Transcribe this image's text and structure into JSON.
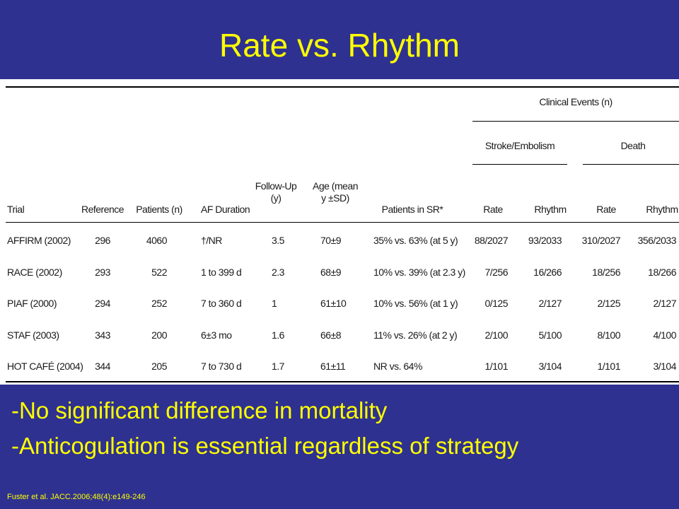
{
  "title": "Rate vs. Rhythm",
  "table": {
    "group_header": "Clinical Events (n)",
    "subgroup_stroke": "Stroke/Embolism",
    "subgroup_death": "Death",
    "columns": {
      "trial": "Trial",
      "reference": "Reference",
      "patients": "Patients (n)",
      "af_duration": "AF Duration",
      "followup_1": "Follow-Up",
      "followup_2": "(y)",
      "age_1": "Age (mean",
      "age_2": "y ±SD)",
      "patients_sr": "Patients in SR*",
      "stroke_rate": "Rate",
      "stroke_rhythm": "Rhythm",
      "death_rate": "Rate",
      "death_rhythm": "Rhythm"
    },
    "rows": [
      {
        "trial": "AFFIRM (2002)",
        "reference": "296",
        "patients": "4060",
        "af_duration": "†/NR",
        "followup": "3.5",
        "age": "70±9",
        "patients_sr": "35% vs. 63% (at 5 y)",
        "stroke_rate": "88/2027",
        "stroke_rhythm": "93/2033",
        "death_rate": "310/2027",
        "death_rhythm": "356/2033"
      },
      {
        "trial": "RACE (2002)",
        "reference": "293",
        "patients": "522",
        "af_duration": "1 to 399 d",
        "followup": "2.3",
        "age": "68±9",
        "patients_sr": "10% vs. 39% (at 2.3 y)",
        "stroke_rate": "7/256",
        "stroke_rhythm": "16/266",
        "death_rate": "18/256",
        "death_rhythm": "18/266"
      },
      {
        "trial": "PIAF (2000)",
        "reference": "294",
        "patients": "252",
        "af_duration": "7 to 360 d",
        "followup": "1",
        "age": "61±10",
        "patients_sr": "10% vs. 56% (at 1 y)",
        "stroke_rate": "0/125",
        "stroke_rhythm": "2/127",
        "death_rate": "2/125",
        "death_rhythm": "2/127"
      },
      {
        "trial": "STAF (2003)",
        "reference": "343",
        "patients": "200",
        "af_duration": "6±3 mo",
        "followup": "1.6",
        "age": "66±8",
        "patients_sr": "11% vs. 26% (at 2 y)",
        "stroke_rate": "2/100",
        "stroke_rhythm": "5/100",
        "death_rate": "8/100",
        "death_rhythm": "4/100"
      },
      {
        "trial": "HOT CAFÉ (2004)",
        "reference": "344",
        "patients": "205",
        "af_duration": "7 to 730 d",
        "followup": "1.7",
        "age": "61±11",
        "patients_sr": "NR vs. 64%",
        "stroke_rate": "1/101",
        "stroke_rhythm": "3/104",
        "death_rate": "1/101",
        "death_rhythm": "3/104"
      }
    ]
  },
  "bullets": [
    "-No significant difference in mortality",
    "-Anticogulation is essential regardless of strategy"
  ],
  "citation": "Fuster et al. JACC.2006;48(4):e149-246"
}
